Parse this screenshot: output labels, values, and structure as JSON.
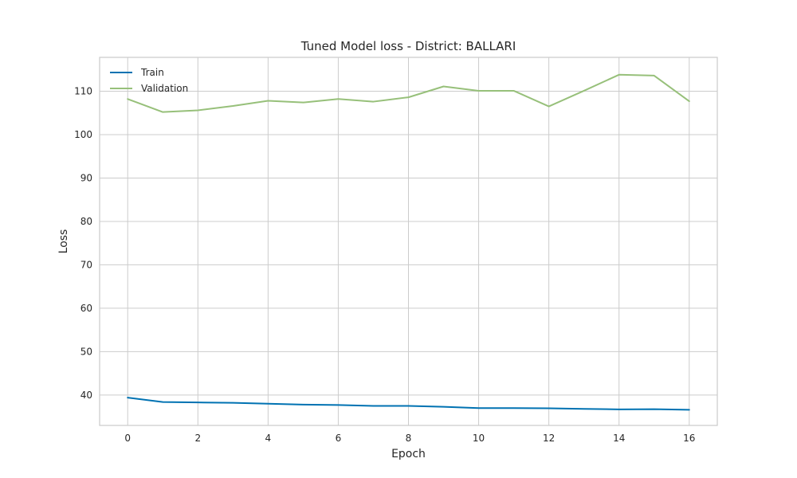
{
  "chart_data": {
    "type": "line",
    "title": "Tuned Model loss - District: BALLARI",
    "xlabel": "Epoch",
    "ylabel": "Loss",
    "xlim": [
      -0.8,
      16.8
    ],
    "ylim": [
      33.0,
      117.8
    ],
    "xticks": [
      0,
      2,
      4,
      6,
      8,
      10,
      12,
      14,
      16
    ],
    "yticks": [
      40,
      50,
      60,
      70,
      80,
      90,
      100,
      110
    ],
    "grid": true,
    "legend_position": "top-left",
    "x": [
      0,
      1,
      2,
      3,
      4,
      5,
      6,
      7,
      8,
      9,
      10,
      11,
      12,
      13,
      14,
      15,
      16
    ],
    "series": [
      {
        "name": "Train",
        "color": "#0072b2",
        "values": [
          39.4,
          38.4,
          38.3,
          38.2,
          38.0,
          37.8,
          37.7,
          37.5,
          37.5,
          37.3,
          37.0,
          37.0,
          36.95,
          36.8,
          36.7,
          36.75,
          36.6
        ]
      },
      {
        "name": "Validation",
        "color": "#97c07a",
        "values": [
          108.2,
          105.2,
          105.6,
          106.6,
          107.8,
          107.4,
          108.2,
          107.6,
          108.6,
          111.1,
          110.1,
          110.1,
          106.5,
          110.1,
          113.8,
          113.6,
          107.7
        ]
      }
    ]
  }
}
